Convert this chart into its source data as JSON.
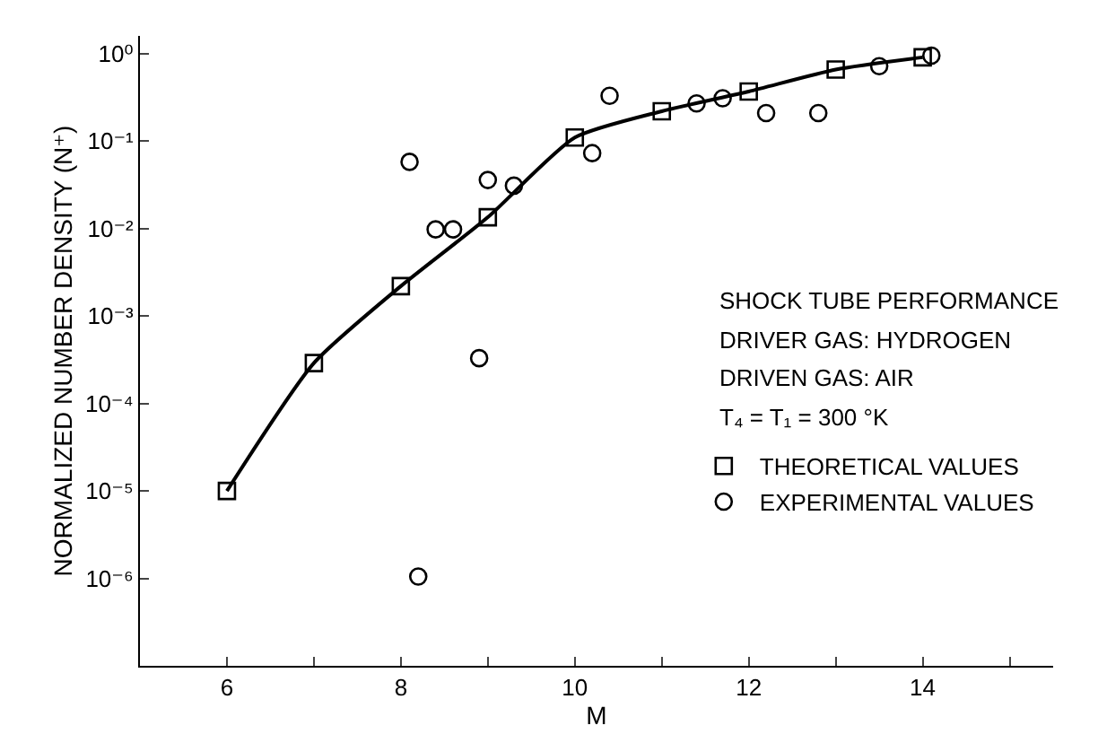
{
  "chart_data": {
    "type": "scatter",
    "xlabel": "M",
    "ylabel": "NORMALIZED NUMBER DENSITY (N⁺)",
    "log": "y",
    "grid": false,
    "legend": "right",
    "xlim": [
      5,
      15.5
    ],
    "xticks": [
      6,
      {
        "value": 7,
        "label": null
      },
      8,
      {
        "value": 9,
        "label": null
      },
      10,
      {
        "value": 11,
        "label": null
      },
      12,
      {
        "value": 13,
        "label": null
      },
      14,
      {
        "value": 15,
        "label": null
      }
    ],
    "ylim": [
      1e-07,
      1.6
    ],
    "yticks": [
      {
        "value": 1e-06,
        "label": "10⁻⁶"
      },
      {
        "value": 1e-05,
        "label": "10⁻⁵"
      },
      {
        "value": 0.0001,
        "label": "10⁻⁴"
      },
      {
        "value": 0.001,
        "label": "10⁻³"
      },
      {
        "value": 0.01,
        "label": "10⁻²"
      },
      {
        "value": 0.1,
        "label": "10⁻¹"
      },
      {
        "value": 1,
        "label": "10⁰"
      }
    ],
    "annotations": [
      "SHOCK TUBE PERFORMANCE",
      "DRIVER GAS: HYDROGEN",
      "DRIVEN GAS: AIR",
      "T₄ = T₁ = 300 °K"
    ],
    "series": [
      {
        "type": "line",
        "color": "#000000",
        "marker": "none",
        "line_style": "solid",
        "x": [
          6,
          7,
          8,
          9,
          10,
          11,
          12,
          13,
          14
        ],
        "values": [
          1e-05,
          0.00029,
          0.0022,
          0.0135,
          0.11,
          0.22,
          0.37,
          0.66,
          0.91
        ]
      },
      {
        "name": "THEORETICAL VALUES",
        "color": "#000000",
        "marker": "square",
        "x": [
          6,
          7,
          8,
          9,
          10,
          11,
          12,
          13,
          14
        ],
        "values": [
          1e-05,
          0.00029,
          0.0022,
          0.0135,
          0.11,
          0.22,
          0.37,
          0.66,
          0.91
        ]
      },
      {
        "name": "EXPERIMENTAL VALUES",
        "color": "#000000",
        "marker": "circle",
        "x": [
          8.1,
          8.2,
          8.4,
          8.6,
          8.9,
          9.0,
          9.3,
          10.2,
          10.4,
          11.4,
          11.7,
          12.2,
          12.8,
          13.5,
          14.1
        ],
        "values": [
          0.058,
          1.05e-06,
          0.0098,
          0.0098,
          0.00033,
          0.036,
          0.031,
          0.073,
          0.33,
          0.27,
          0.31,
          0.21,
          0.21,
          0.72,
          0.95
        ]
      }
    ]
  }
}
